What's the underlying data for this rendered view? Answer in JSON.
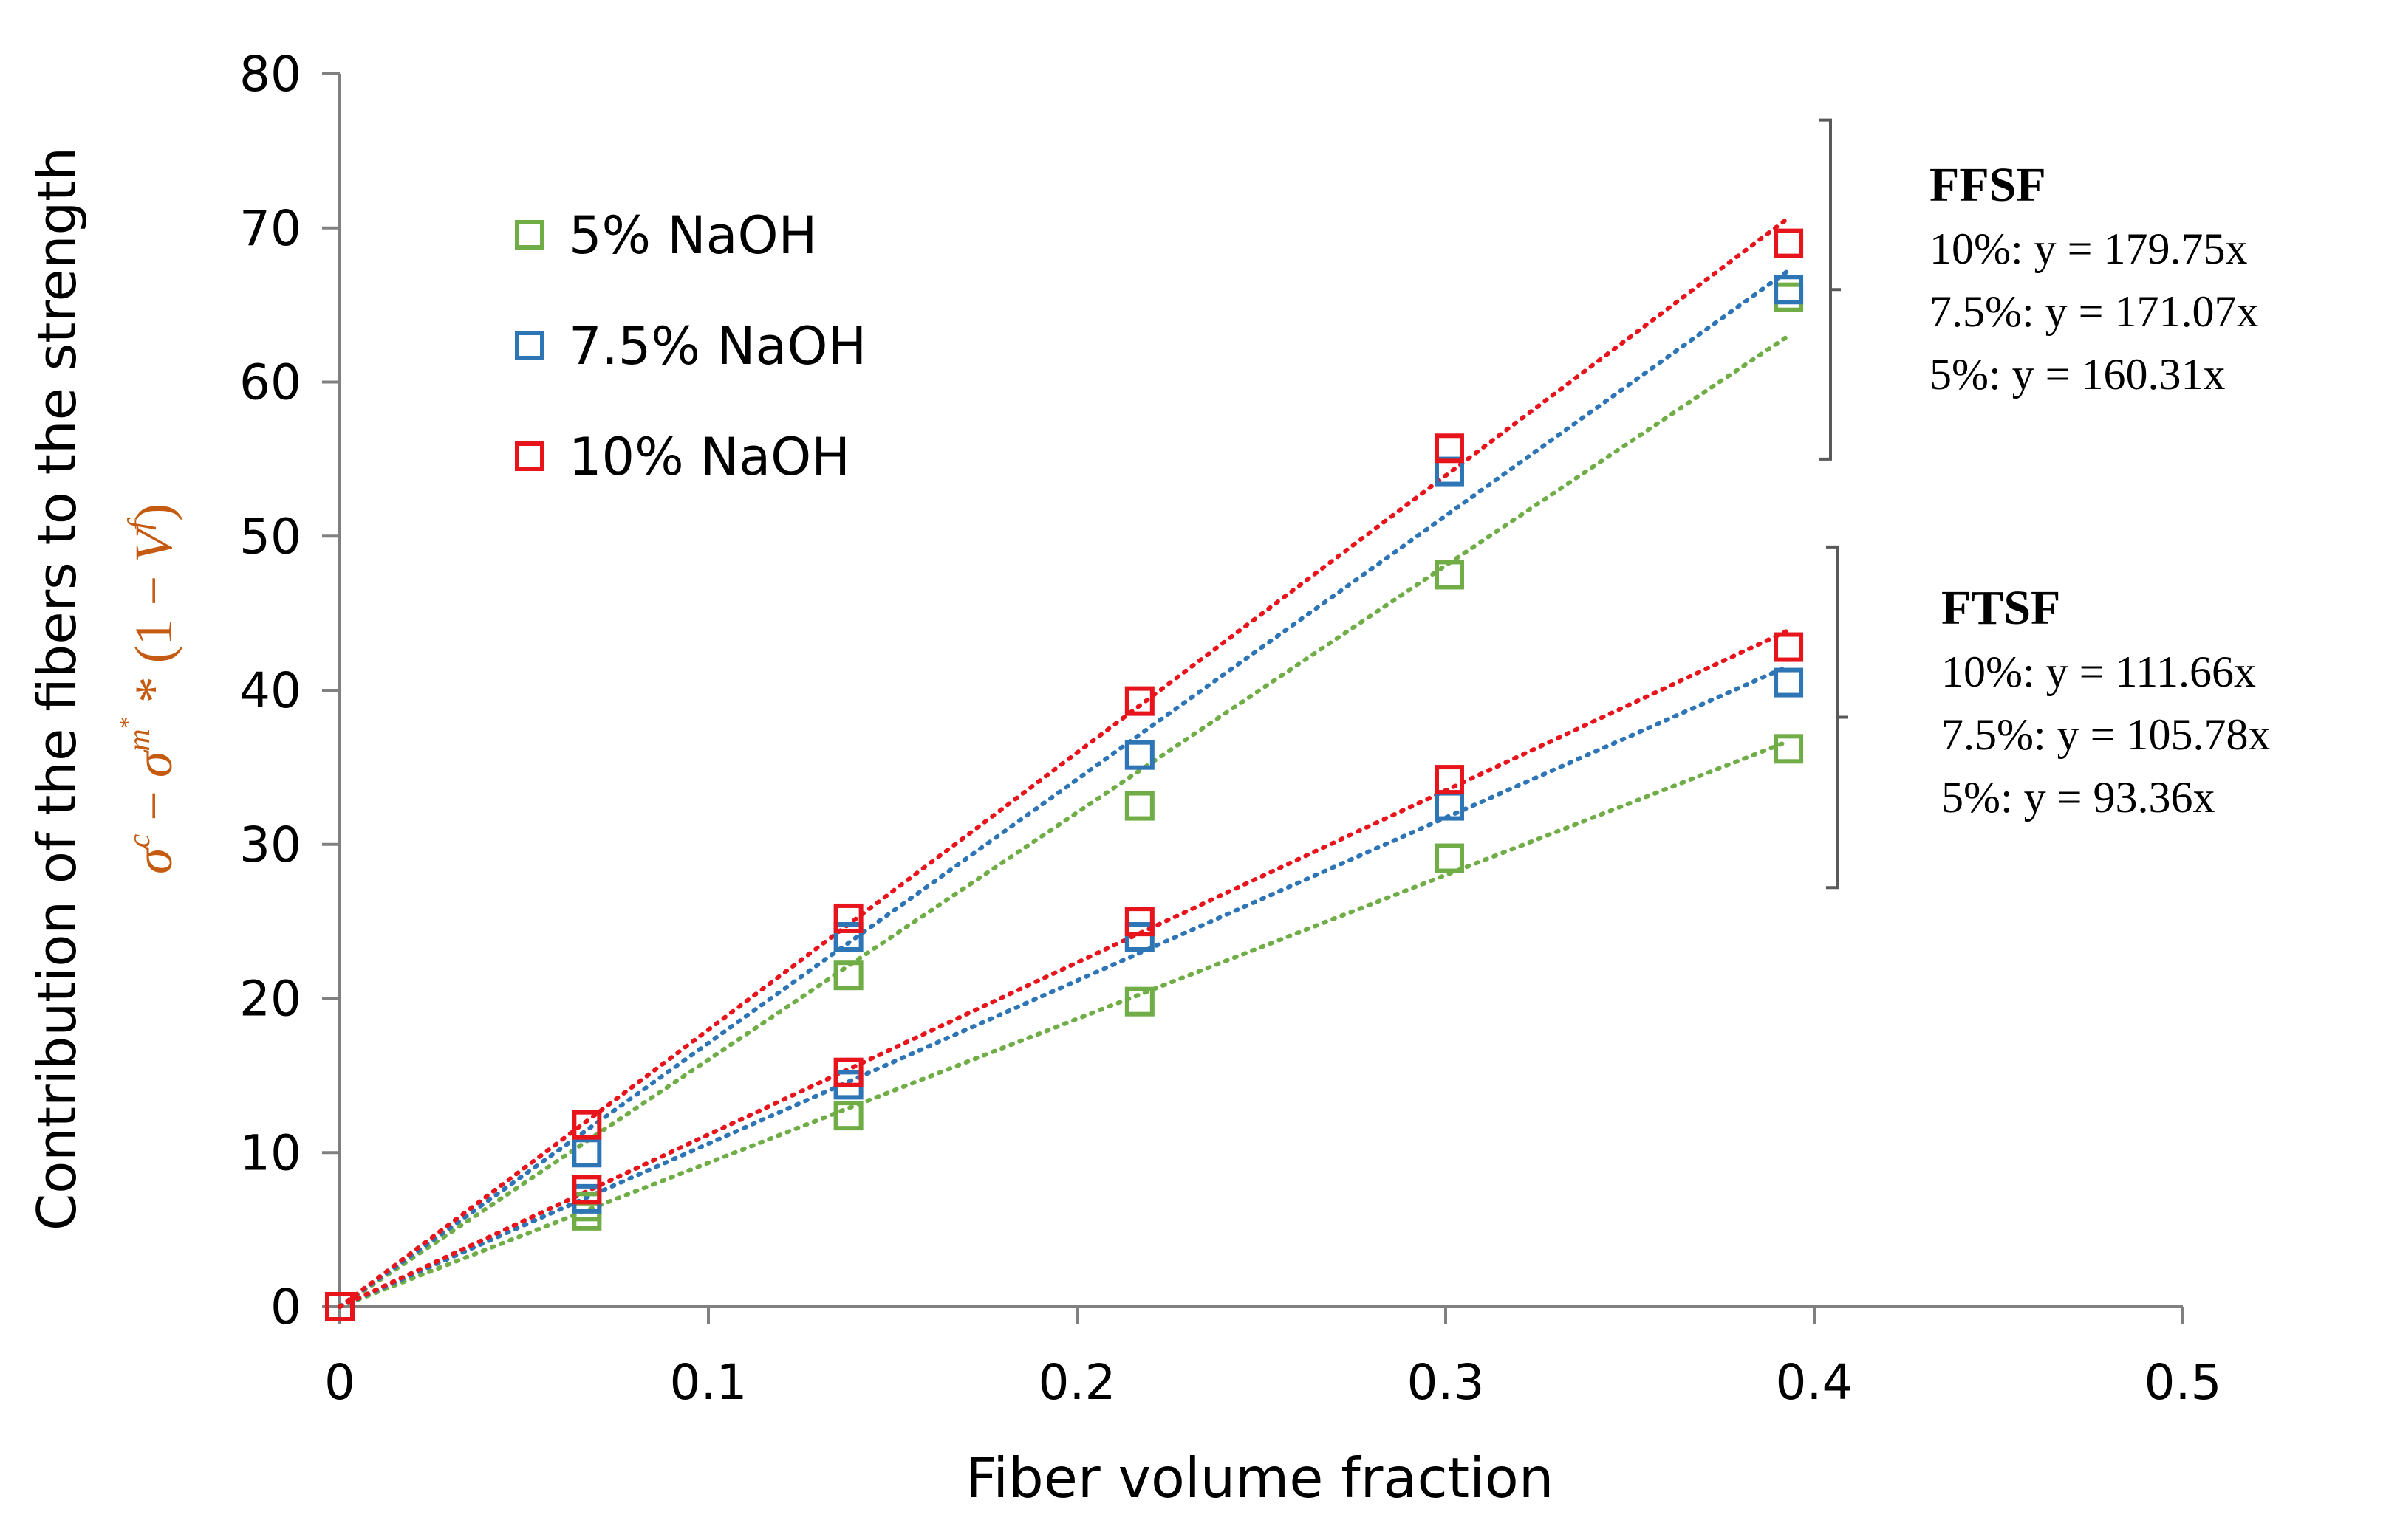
{
  "chart_data": {
    "type": "scatter",
    "title": "",
    "xlabel": "Fiber volume fraction",
    "ylabel": "Contribution of the fibers to the strength",
    "ylabel_formula": {
      "sigma": "σ",
      "c": "c",
      "minus": " − ",
      "m": "m",
      "star": "*",
      "times": " * ",
      "paren_open": "(1 − ",
      "V": "V",
      "f": "f",
      "paren_close": ")"
    },
    "xlim": [
      0,
      0.5
    ],
    "ylim": [
      0,
      80
    ],
    "x_ticks": [
      0,
      0.1,
      0.2,
      0.3,
      0.4,
      0.5
    ],
    "x_tick_labels": [
      "0",
      "0.1",
      "0.2",
      "0.3",
      "0.4",
      "0.5"
    ],
    "y_ticks": [
      0,
      10,
      20,
      30,
      40,
      50,
      60,
      70,
      80
    ],
    "y_tick_labels": [
      "0",
      "10",
      "20",
      "30",
      "40",
      "50",
      "60",
      "70",
      "80"
    ],
    "grid": false,
    "legend_position": "upper-left",
    "legend": [
      {
        "label": "5% NaOH",
        "color": "#70ad47"
      },
      {
        "label": "7.5% NaOH",
        "color": "#2e75b6"
      },
      {
        "label": "10% NaOH",
        "color": "#e8141c"
      }
    ],
    "x": [
      0,
      0.067,
      0.138,
      0.217,
      0.301,
      0.393
    ],
    "trend_x_end": 0.393,
    "series": [
      {
        "group": "FFSF",
        "name": "5% NaOH",
        "color": "#70ad47",
        "values": [
          0,
          6.5,
          21.5,
          32.5,
          47.5,
          65.5
        ],
        "slope": 160.31
      },
      {
        "group": "FFSF",
        "name": "7.5% NaOH",
        "color": "#2e75b6",
        "values": [
          0,
          10.0,
          24.0,
          35.8,
          54.2,
          66.0
        ],
        "slope": 171.07
      },
      {
        "group": "FFSF",
        "name": "10% NaOH",
        "color": "#e8141c",
        "values": [
          0,
          11.8,
          25.2,
          39.3,
          55.7,
          69.0
        ],
        "slope": 179.75
      },
      {
        "group": "FTSF",
        "name": "5% NaOH",
        "color": "#70ad47",
        "values": [
          0,
          5.9,
          12.4,
          19.8,
          29.1,
          36.2
        ],
        "slope": 93.36
      },
      {
        "group": "FTSF",
        "name": "7.5% NaOH",
        "color": "#2e75b6",
        "values": [
          0,
          7.0,
          14.4,
          24.0,
          32.5,
          40.5
        ],
        "slope": 105.78
      },
      {
        "group": "FTSF",
        "name": "10% NaOH",
        "color": "#e8141c",
        "values": [
          0,
          7.6,
          15.2,
          25.0,
          34.2,
          42.8
        ],
        "slope": 111.66
      }
    ],
    "annotations": [
      {
        "title": "FFSF",
        "lines": [
          "10%: y = 179.75x",
          "7.5%: y = 171.07x",
          "5%: y = 160.31x"
        ],
        "bracket_y": [
          77,
          55
        ]
      },
      {
        "title": "FTSF",
        "lines": [
          "10%: y = 111.66x",
          "7.5%: y = 105.78x",
          "5%: y = 93.36x"
        ],
        "bracket_y": [
          49.3,
          27.2
        ]
      }
    ]
  }
}
